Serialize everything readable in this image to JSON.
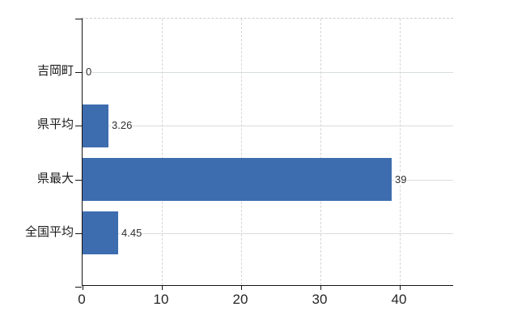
{
  "chart_data": {
    "type": "bar",
    "orientation": "horizontal",
    "categories": [
      "吉岡町",
      "県平均",
      "県最大",
      "全国平均"
    ],
    "values": [
      0,
      3.26,
      39,
      4.45
    ],
    "value_labels": [
      "0",
      "3.26",
      "39",
      "4.45"
    ],
    "x_ticks": [
      0,
      10,
      20,
      30,
      40
    ],
    "x_tick_labels": [
      "0",
      "10",
      "20",
      "30",
      "40"
    ],
    "xlim": [
      0,
      46.8
    ],
    "grid": true,
    "legend": "none",
    "title": "",
    "colors": {
      "bar": "#3e6daf",
      "axis": "#151515",
      "hgrid": "#d7ded7",
      "vgrid": "#d6d4d6",
      "plot_top_border": "#cdcdcd",
      "text": "#262626",
      "background": "#ffffff"
    }
  }
}
